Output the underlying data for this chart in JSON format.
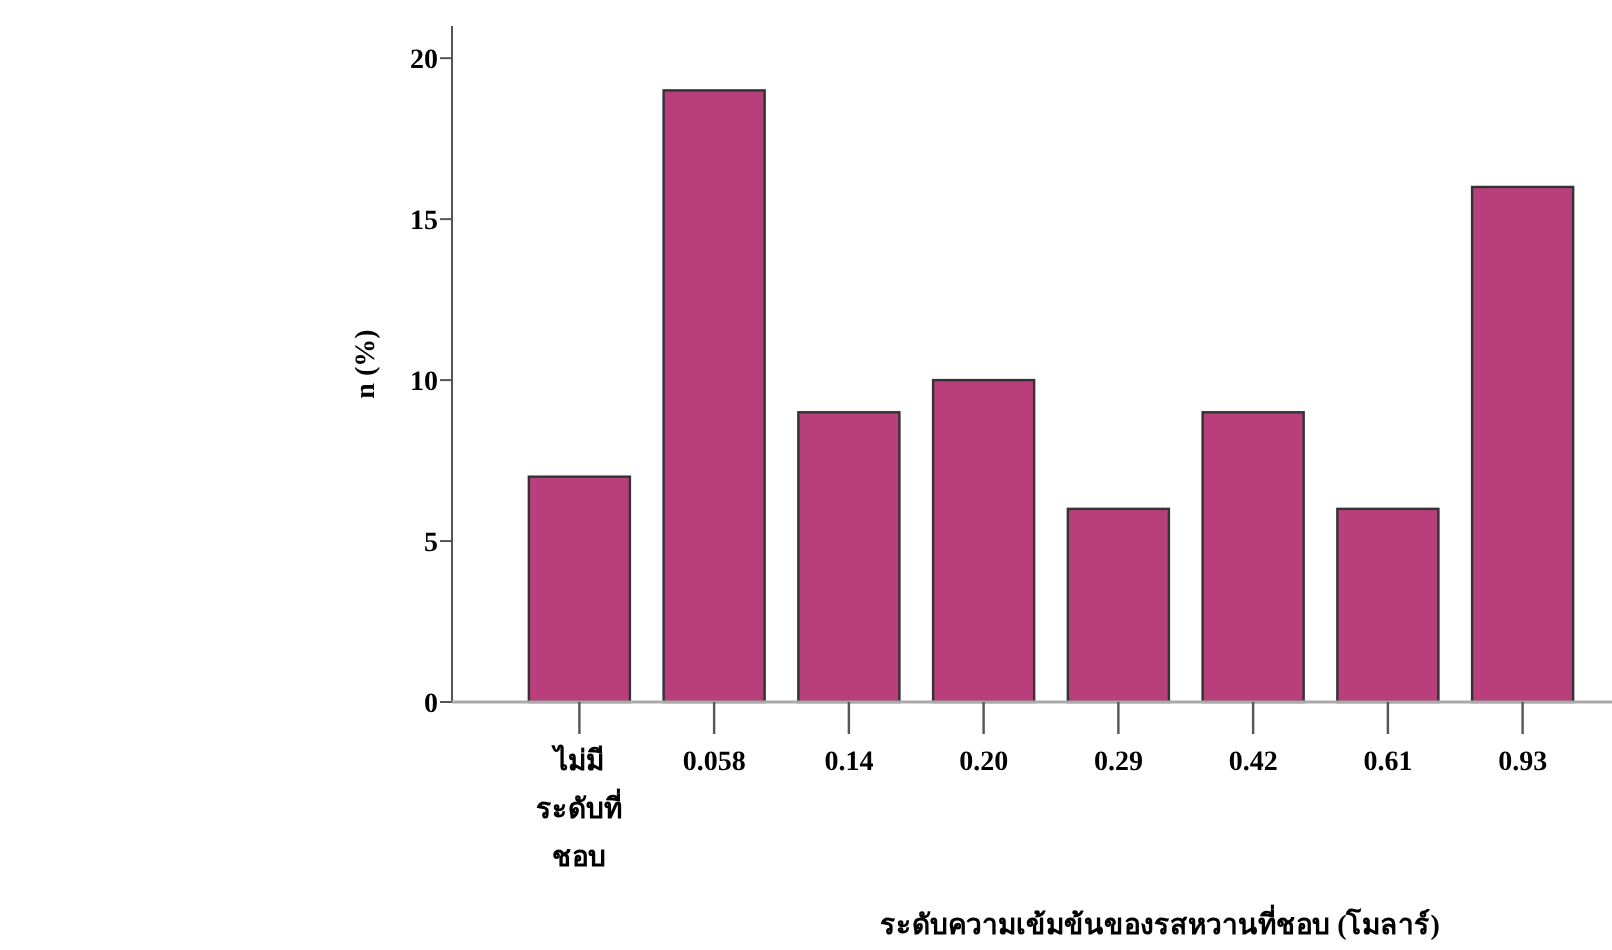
{
  "chart_data": {
    "type": "bar",
    "xlabel": "ระดับความเข้มข้นของรสหวานที่ชอบ (โมลาร์)",
    "ylabel": "n (%)",
    "categories": [
      "ไม่มี\nระดับที่\nชอบ",
      "0.058",
      "0.14",
      "0.20",
      "0.29",
      "0.42",
      "0.61",
      "0.93"
    ],
    "values": [
      7,
      19,
      9,
      10,
      6,
      9,
      6,
      16
    ],
    "color": "#b93e7c",
    "ylim": [
      0,
      21
    ],
    "yticks": [
      0,
      5,
      10,
      15,
      20
    ],
    "grid": false
  }
}
